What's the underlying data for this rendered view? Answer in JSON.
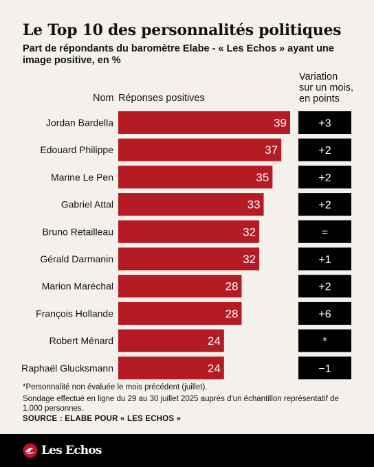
{
  "header": {
    "title": "Le Top 10 des personnalités politiques",
    "subtitle": "Part de répondants du baromètre Elabe - « Les Echos » ayant une image positive, en %",
    "variation_header": [
      "Variation",
      "sur un mois,",
      "en points"
    ],
    "name_column": "Nom",
    "responses_column": "Réponses positives"
  },
  "chart_data": {
    "type": "bar",
    "orientation": "horizontal",
    "categories": [
      "Jordan Bardella",
      "Edouard Philippe",
      "Marine Le Pen",
      "Gabriel Attal",
      "Bruno Retailleau",
      "Gérald Darmanin",
      "Marion Maréchal",
      "François Hollande",
      "Robert Ménard",
      "Raphaël Glucksmann"
    ],
    "values": [
      39,
      37,
      35,
      33,
      32,
      32,
      28,
      28,
      24,
      24
    ],
    "variation": [
      "+3",
      "+2",
      "+2",
      "+2",
      "=",
      "+1",
      "+2",
      "+6",
      "*",
      "−1"
    ],
    "title": "Le Top 10 des personnalités politiques",
    "xlabel": "Réponses positives",
    "ylabel": "Nom",
    "bar_color": "#b41b22",
    "variation_box_color": "#000000",
    "xlim": [
      0,
      39
    ]
  },
  "footer": {
    "footnote": "*Personnalité non évaluée le mois précédent (juillet).",
    "method": "Sondage effectué en ligne du 29 au 30 juillet 2025 auprès d'un échantillon représentatif de 1.000 personnes.",
    "source": "SOURCE : ELABE POUR « LES ECHOS »",
    "brand": "Les Echos"
  }
}
